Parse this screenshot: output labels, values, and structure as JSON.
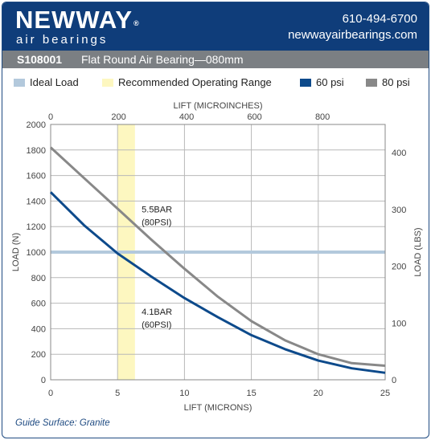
{
  "brand": {
    "logo_text": "NEWWAY",
    "reg_mark": "®",
    "tagline": "air bearings",
    "phone": "610-494-6700",
    "website": "newwayairbearings.com",
    "header_color": "#0f3d7a"
  },
  "titlebar": {
    "code": "S108001",
    "description": "Flat Round Air Bearing—080mm",
    "color": "#7b7f83"
  },
  "legend": {
    "ideal_load": "Ideal Load",
    "recommended_range": "Recommended Operating Range",
    "series_60": "60 psi",
    "series_80": "80 psi"
  },
  "footer": {
    "guide_surface": "Guide Surface: Granite"
  },
  "chart_data": {
    "type": "line",
    "xlabel": "LIFT (MICRONS)",
    "x2label": "LIFT (MICROINCHES)",
    "ylabel": "LOAD (N)",
    "y2label": "LOAD (LBS)",
    "xlim": [
      0,
      25
    ],
    "ylim": [
      0,
      2000
    ],
    "x_ticks": [
      0,
      5,
      10,
      15,
      20,
      25
    ],
    "y_ticks": [
      0,
      200,
      400,
      600,
      800,
      1000,
      1200,
      1400,
      1600,
      1800,
      2000
    ],
    "x2_ticks": [
      0,
      200,
      400,
      600,
      800
    ],
    "y2_ticks": [
      0,
      100,
      200,
      300,
      400
    ],
    "grid": true,
    "recommended_range": [
      5,
      6.3
    ],
    "ideal_load": 1000,
    "series": [
      {
        "name": "60 psi",
        "color": "#0d4a8b",
        "x": [
          0,
          2.5,
          5,
          7.5,
          10,
          12.5,
          15,
          17.5,
          20,
          22.5,
          25
        ],
        "y": [
          1470,
          1210,
          990,
          810,
          640,
          490,
          350,
          240,
          150,
          90,
          55
        ]
      },
      {
        "name": "80 psi",
        "color": "#888888",
        "x": [
          0,
          2.5,
          5,
          7.5,
          10,
          12.5,
          15,
          17.5,
          20,
          22.5,
          25
        ],
        "y": [
          1820,
          1580,
          1340,
          1100,
          870,
          650,
          460,
          310,
          200,
          130,
          110
        ]
      }
    ],
    "annotations": [
      {
        "text": "5.5BAR",
        "x": 6.8,
        "y": 1310
      },
      {
        "text": "(80PSI)",
        "x": 6.8,
        "y": 1210
      },
      {
        "text": "4.1BAR",
        "x": 6.8,
        "y": 510
      },
      {
        "text": "(60PSI)",
        "x": 6.8,
        "y": 410
      }
    ],
    "colors": {
      "ideal_load": "#b3c9dc",
      "recommended_range": "#fdf7c0",
      "grid": "#b8b8b8"
    }
  }
}
